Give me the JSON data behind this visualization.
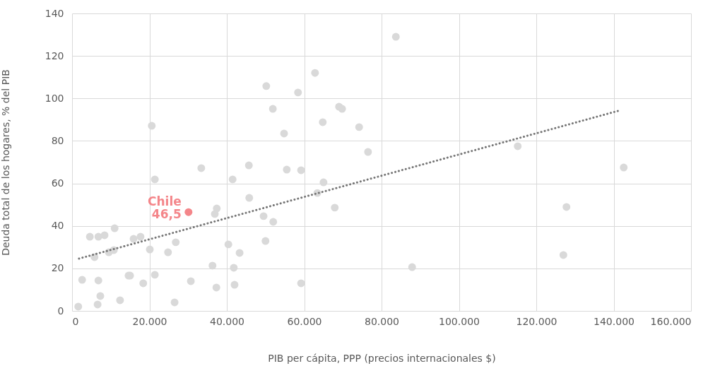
{
  "chart_data": {
    "type": "scatter",
    "xlabel": "PIB per cápita, PPP (precios internacionales $)",
    "ylabel": "Deuda total de los hogares, % del PIB",
    "xlim": [
      0,
      160000
    ],
    "ylim": [
      0,
      140
    ],
    "xticks": [
      0,
      {
        "value": 20000,
        "label": "20.000"
      },
      {
        "value": 40000,
        "label": "40.000"
      },
      {
        "value": 60000,
        "label": "60.000"
      },
      {
        "value": 80000,
        "label": "80.000"
      },
      {
        "value": 100000,
        "label": "100.000"
      },
      {
        "value": 120000,
        "label": "120.000"
      },
      {
        "value": 140000,
        "label": "140.000"
      },
      {
        "value": 160000,
        "label": "160.000"
      }
    ],
    "yticks": [
      0,
      20,
      40,
      60,
      80,
      100,
      120,
      140
    ],
    "grid": true,
    "marker": "circle",
    "series": [
      {
        "color": "#d9d9d9",
        "x": [
          1600,
          2600,
          4600,
          5800,
          6800,
          6600,
          6800,
          7300,
          8400,
          9500,
          11000,
          10800,
          12400,
          14600,
          15000,
          15900,
          17700,
          18400,
          20100,
          20600,
          21400,
          21400,
          24800,
          26500,
          26800,
          30700,
          33400,
          36300,
          36900,
          37400,
          37300,
          40400,
          41500,
          41800,
          42000,
          43300,
          45700,
          45800,
          49500,
          50000,
          50200,
          51900,
          52000,
          54800,
          55500,
          58400,
          59200,
          59200,
          62800,
          63400,
          64800,
          65000,
          67900,
          69000,
          69800,
          74200,
          76500,
          83700,
          87900,
          115200,
          127000,
          127800,
          142600
        ],
        "values": [
          2,
          14.6,
          34.9,
          25.3,
          34.9,
          3,
          14.3,
          7,
          35.6,
          27.6,
          38.9,
          28.6,
          5,
          16.6,
          16.6,
          33.9,
          34.9,
          13,
          28.9,
          87.1,
          61.9,
          17,
          27.6,
          4,
          32.3,
          14,
          67.2,
          21.3,
          45.6,
          48.2,
          11,
          31.3,
          61.9,
          20.3,
          12.3,
          27.3,
          68.5,
          53.2,
          44.6,
          32.9,
          105.8,
          95.1,
          41.9,
          83.5,
          66.5,
          102.8,
          66.2,
          13,
          112,
          55.5,
          88.8,
          60.5,
          48.6,
          96.1,
          95.1,
          86.5,
          74.8,
          129,
          20.6,
          77.5,
          26.3,
          48.9,
          67.5
        ]
      },
      {
        "type": "line",
        "color": "#767676",
        "line_style": "dotted",
        "marker": "none",
        "x": [
          1800,
          141700
        ],
        "values": [
          24.6,
          94.4
        ]
      },
      {
        "name": "Chile",
        "color": "#f4868a",
        "x": [
          30100
        ],
        "values": [
          46.5
        ],
        "value_labels": [
          "46,5"
        ]
      }
    ]
  }
}
